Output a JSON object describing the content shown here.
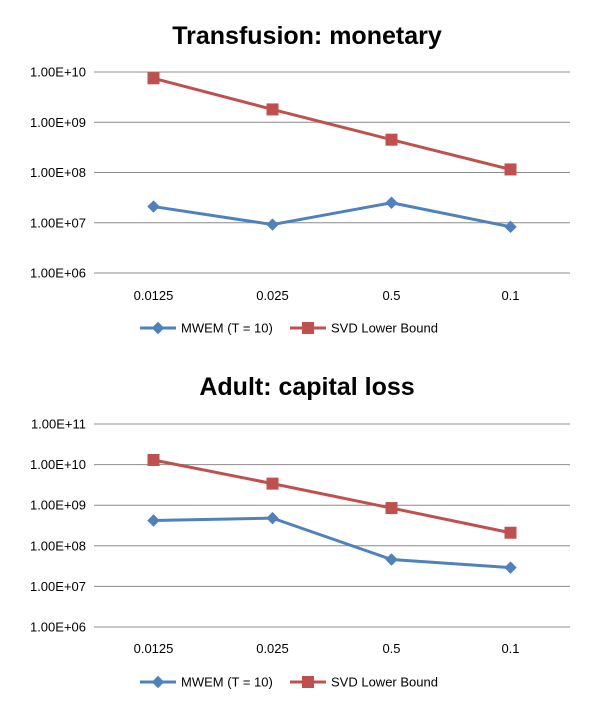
{
  "chart_data": [
    {
      "type": "line",
      "title": "Transfusion: monetary",
      "y_scale": "log",
      "ylim": [
        1000000,
        10000000000
      ],
      "y_ticks": [
        "1.00E+06",
        "1.00E+07",
        "1.00E+08",
        "1.00E+09",
        "1.00E+10"
      ],
      "categories": [
        "0.0125",
        "0.025",
        "0.5",
        "0.1"
      ],
      "grid": true,
      "legend_position": "bottom",
      "series": [
        {
          "name": "MWEM (T = 10)",
          "color": "#4f81bd",
          "marker": "diamond",
          "values": [
            21000000,
            9200000,
            25000000,
            8300000
          ]
        },
        {
          "name": "SVD Lower Bound",
          "color": "#c0504d",
          "marker": "square",
          "values": [
            7500000000,
            1800000000,
            450000000,
            115000000
          ]
        }
      ]
    },
    {
      "type": "line",
      "title": "Adult: capital loss",
      "y_scale": "log",
      "ylim": [
        1000000,
        100000000000
      ],
      "y_ticks": [
        "1.00E+06",
        "1.00E+07",
        "1.00E+08",
        "1.00E+09",
        "1.00E+10",
        "1.00E+11"
      ],
      "categories": [
        "0.0125",
        "0.025",
        "0.5",
        "0.1"
      ],
      "grid": true,
      "legend_position": "bottom",
      "series": [
        {
          "name": "MWEM (T = 10)",
          "color": "#4f81bd",
          "marker": "diamond",
          "values": [
            420000000,
            480000000,
            46000000,
            29000000
          ]
        },
        {
          "name": "SVD Lower Bound",
          "color": "#c0504d",
          "marker": "square",
          "values": [
            13000000000,
            3400000000,
            850000000,
            210000000
          ]
        }
      ]
    }
  ]
}
